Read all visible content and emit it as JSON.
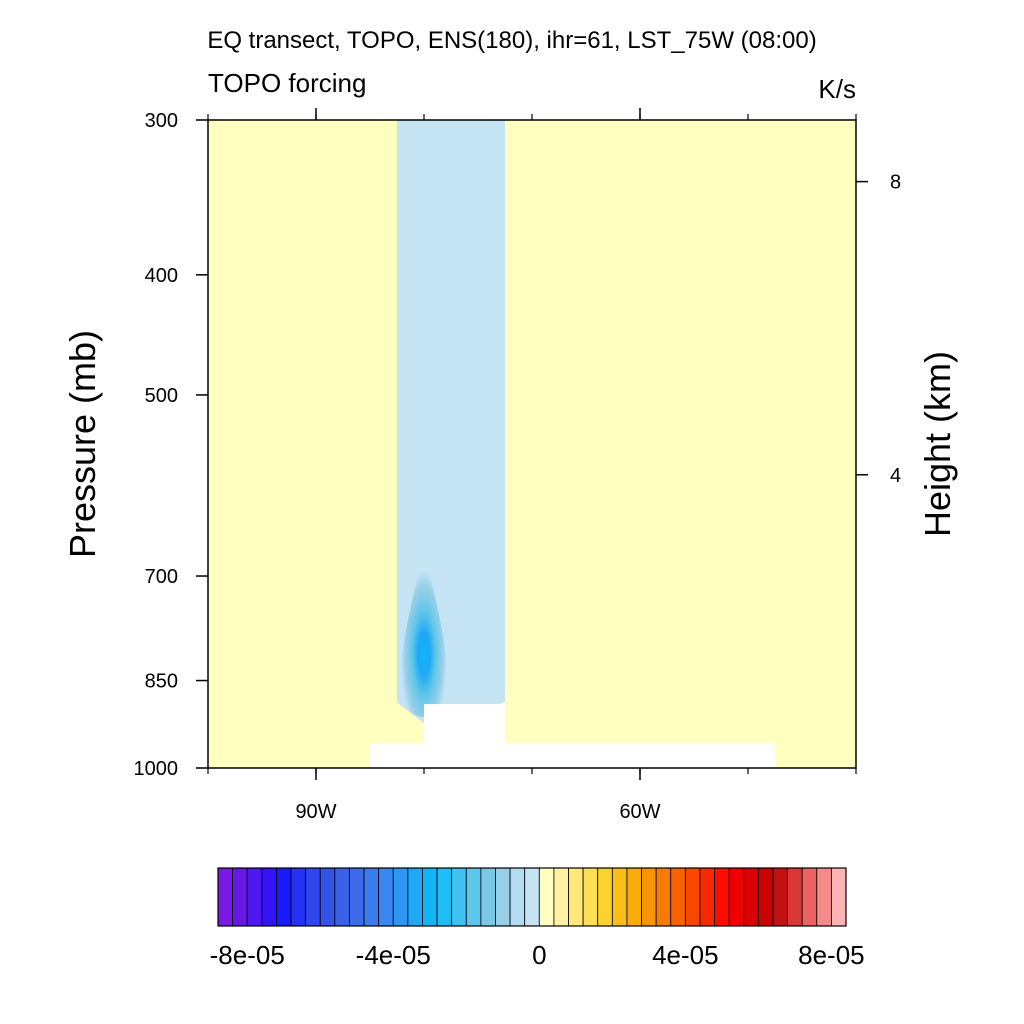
{
  "chart_data": {
    "type": "heatmap",
    "title": "EQ transect, TOPO, ENS(180), ihr=61, LST_75W (08:00)",
    "left_string": "TOPO forcing",
    "right_string": "K/s",
    "ylabel": "Pressure (mb)",
    "ylabel_right": "Height (km)",
    "x_axis": {
      "range_deg_east": [
        -100,
        -40
      ],
      "ticks": [
        {
          "value": -90,
          "label": "90W"
        },
        {
          "value": -60,
          "label": "60W"
        }
      ]
    },
    "y_axis": {
      "scale": "log",
      "range_mb": [
        1000,
        300
      ],
      "ticks": [
        {
          "value": 300,
          "label": "300"
        },
        {
          "value": 400,
          "label": "400"
        },
        {
          "value": 500,
          "label": "500"
        },
        {
          "value": 700,
          "label": "700"
        },
        {
          "value": 850,
          "label": "850"
        },
        {
          "value": 1000,
          "label": "1000"
        }
      ]
    },
    "y_axis_right": {
      "ticks": [
        {
          "value": 8,
          "label": "8"
        },
        {
          "value": 4,
          "label": "4"
        }
      ]
    },
    "field": {
      "background_value": 0,
      "regions": [
        {
          "name": "Andes negative band",
          "lon_range": [
            -82.5,
            -72.5
          ],
          "p_range_mb": [
            300,
            885
          ],
          "value": -2e-06
        },
        {
          "name": "Minimum core",
          "center_lon": -80,
          "center_p_mb": 850,
          "min_value": -4e-05
        }
      ],
      "topography_masks": [
        {
          "lon_range": [
            -85,
            -47.5
          ],
          "p_range_mb": [
            955,
            1000
          ]
        },
        {
          "lon_range": [
            -80,
            -72.5
          ],
          "p_range_mb": [
            888,
            1000
          ]
        }
      ]
    },
    "colorbar": {
      "labels": [
        {
          "value": -8e-05,
          "label": "-8e-05"
        },
        {
          "value": -4e-05,
          "label": "-4e-05"
        },
        {
          "value": 0,
          "label": "0"
        },
        {
          "value": 4e-05,
          "label": "4e-05"
        },
        {
          "value": 8e-05,
          "label": "8e-05"
        }
      ],
      "colors": [
        "#7b18e6",
        "#6619e6",
        "#4f18ee",
        "#3412f8",
        "#1a1aff",
        "#2432f2",
        "#2f46ea",
        "#3552e6",
        "#3a60e8",
        "#3c6cea",
        "#3a7bee",
        "#3788f2",
        "#2e96f4",
        "#1ea8f6",
        "#10b6f8",
        "#1ebef5",
        "#3ec2ef",
        "#5ec6ea",
        "#7ac8e6",
        "#98cfe8",
        "#b3dcf0",
        "#c4e4f4",
        "#ffffc0",
        "#fff2a0",
        "#ffe878",
        "#fcdf54",
        "#fad32e",
        "#f8c016",
        "#f8ac0c",
        "#f89408",
        "#f87c04",
        "#f86200",
        "#f84800",
        "#f82800",
        "#ff0c00",
        "#ec0000",
        "#dc0000",
        "#cc0000",
        "#c01010",
        "#d83838",
        "#ea6262",
        "#f48a8a",
        "#ffb4b4"
      ]
    }
  }
}
